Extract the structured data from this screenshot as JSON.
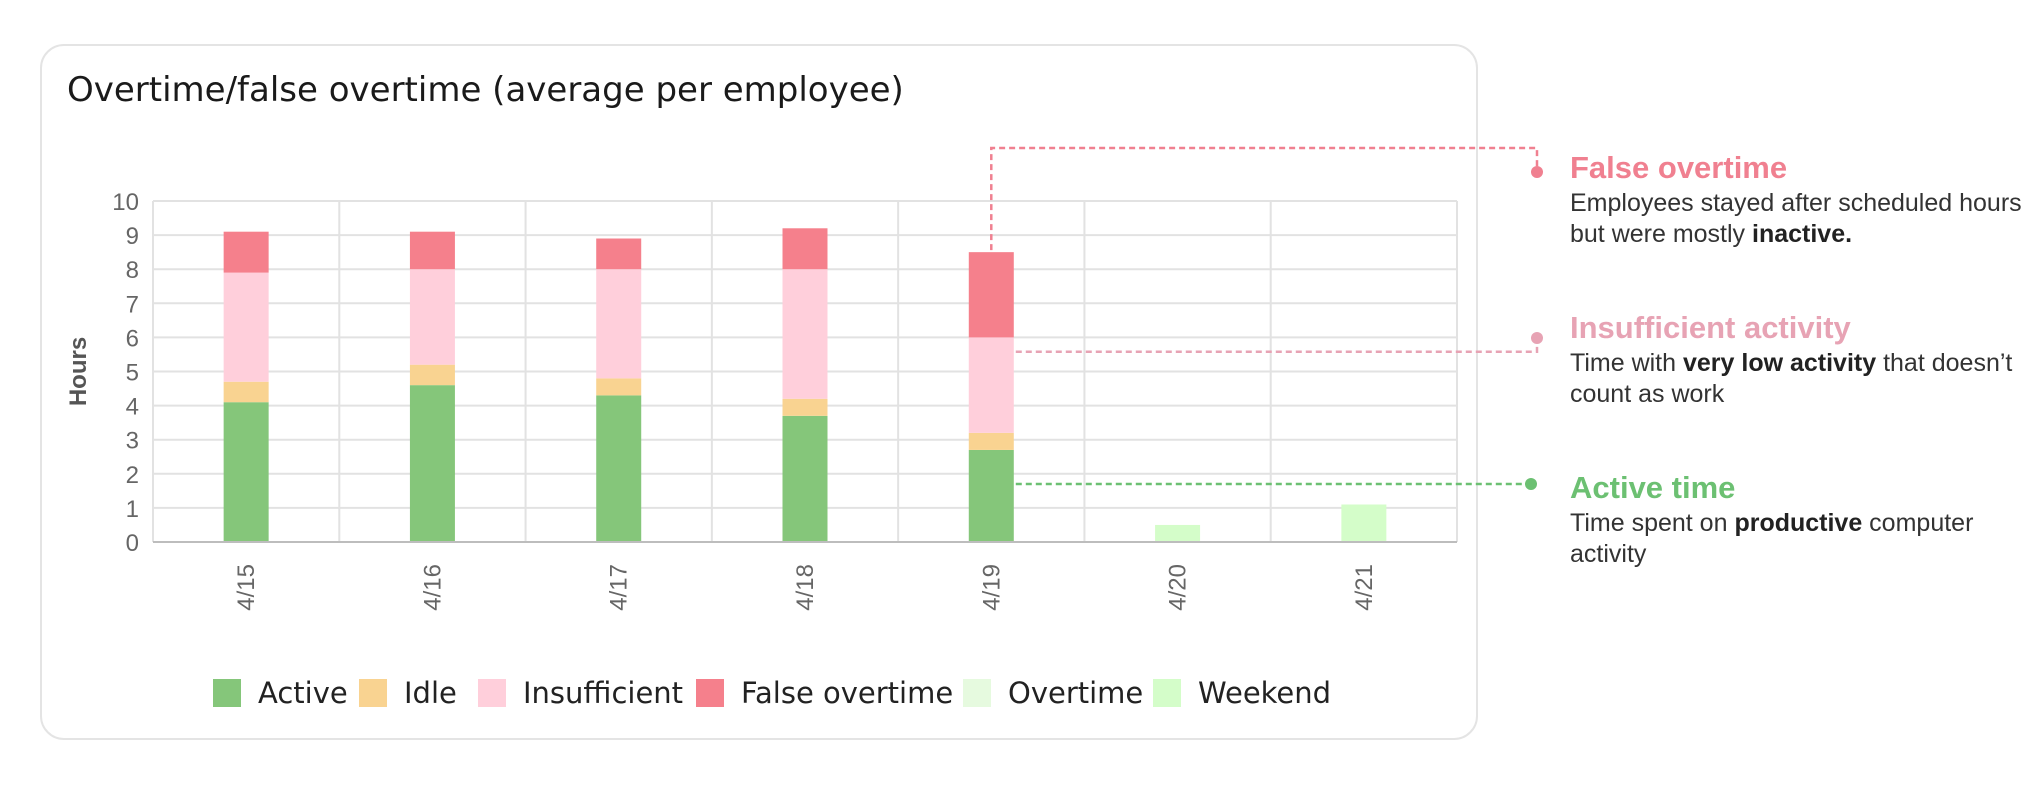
{
  "title": "Overtime/false overtime (average per employee)",
  "chart_data": {
    "type": "bar",
    "stacked": true,
    "categories": [
      "4/15",
      "4/16",
      "4/17",
      "4/18",
      "4/19",
      "4/20",
      "4/21"
    ],
    "series": [
      {
        "name": "Active",
        "color": "#85c67a",
        "values": [
          4.1,
          4.6,
          4.3,
          3.7,
          2.7,
          0,
          0
        ]
      },
      {
        "name": "Idle",
        "color": "#f9d391",
        "values": [
          0.6,
          0.6,
          0.5,
          0.5,
          0.5,
          0,
          0
        ]
      },
      {
        "name": "Insufficient",
        "color": "#ffcfdb",
        "values": [
          3.2,
          2.8,
          3.2,
          3.8,
          2.8,
          0,
          0
        ]
      },
      {
        "name": "False overtime",
        "color": "#f5808c",
        "values": [
          1.2,
          1.1,
          0.9,
          1.2,
          2.5,
          0,
          0
        ]
      },
      {
        "name": "Overtime",
        "color": "#e6fadf",
        "values": [
          0,
          0,
          0,
          0,
          0,
          0,
          0
        ]
      },
      {
        "name": "Weekend",
        "color": "#d4fdc9",
        "values": [
          0,
          0,
          0,
          0,
          0,
          0.5,
          1.1
        ]
      }
    ],
    "ylabel": "Hours",
    "ylim": [
      0,
      10
    ],
    "yticks": [
      0,
      1,
      2,
      3,
      4,
      5,
      6,
      7,
      8,
      9,
      10
    ],
    "grid": true,
    "legend_position": "bottom"
  },
  "callouts": [
    {
      "key": "false_overtime",
      "color": "#f08090",
      "title": "False overtime",
      "desc_pre": "Employees stayed after scheduled hours but were mostly ",
      "desc_bold": "inactive.",
      "desc_post": ""
    },
    {
      "key": "insufficient",
      "color": "#e7a3b4",
      "title": "Insufficient activity",
      "desc_pre": "Time with ",
      "desc_bold": "very low activity",
      "desc_post": " that doesn’t count as work"
    },
    {
      "key": "active",
      "color": "#6cc072",
      "title": "Active time",
      "desc_pre": "Time spent on ",
      "desc_bold": "productive",
      "desc_post": " computer activity"
    }
  ]
}
